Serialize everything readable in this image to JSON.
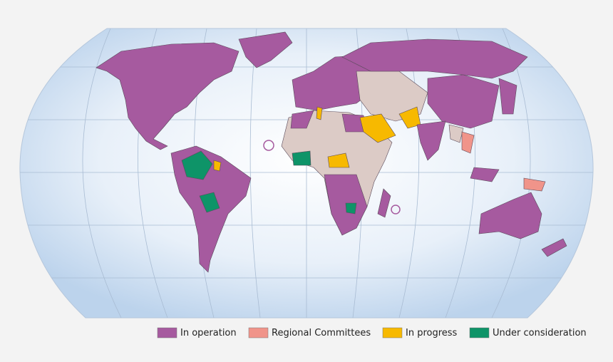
{
  "legend": [
    {
      "label": "In operation",
      "color": "#a65a9f"
    },
    {
      "label": "Regional Committees",
      "color": "#f0948a"
    },
    {
      "label": "In progress",
      "color": "#f7b900"
    },
    {
      "label": "Under consideration",
      "color": "#0e9468"
    }
  ]
}
